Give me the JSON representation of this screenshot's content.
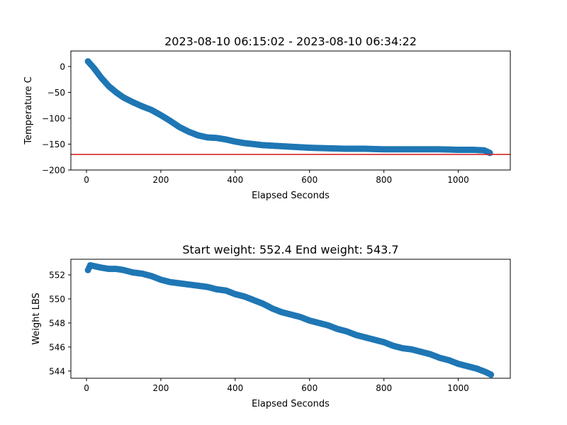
{
  "chart_data": [
    {
      "type": "scatter",
      "title": "2023-08-10 06:15:02 - 2023-08-10 06:34:22",
      "xlabel": "Elapsed Seconds",
      "ylabel": "Temperature C",
      "xlim": [
        -42,
        1140
      ],
      "ylim": [
        -200,
        30
      ],
      "xticks": [
        0,
        200,
        400,
        600,
        800,
        1000
      ],
      "yticks": [
        0,
        -50,
        -100,
        -150,
        -200
      ],
      "xtick_labels": [
        "0",
        "200",
        "400",
        "600",
        "800",
        "1000"
      ],
      "ytick_labels": [
        "0",
        "−50",
        "−100",
        "−150",
        "−200"
      ],
      "grid": false,
      "marker_color": "#1f77b4",
      "reference_line": {
        "y": -170,
        "color": "#d62728"
      },
      "series": [
        {
          "x": [
            4,
            20,
            40,
            60,
            80,
            100,
            125,
            150,
            175,
            200,
            225,
            250,
            275,
            300,
            325,
            350,
            375,
            400,
            425,
            450,
            475,
            500,
            525,
            550,
            575,
            600,
            650,
            700,
            750,
            800,
            850,
            900,
            950,
            1000,
            1040,
            1070,
            1085
          ],
          "y": [
            10,
            -3,
            -22,
            -38,
            -50,
            -60,
            -69,
            -77,
            -84,
            -94,
            -105,
            -117,
            -126,
            -133,
            -137,
            -138,
            -141,
            -145,
            -148,
            -150,
            -152,
            -153,
            -154,
            -155,
            -156,
            -157,
            -158,
            -159,
            -159,
            -160,
            -160,
            -160,
            -160,
            -161,
            -161,
            -162,
            -167
          ]
        }
      ]
    },
    {
      "type": "scatter",
      "title": "Start weight: 552.4 End weight: 543.7",
      "xlabel": "Elapsed Seconds",
      "ylabel": "Weight LBS",
      "xlim": [
        -42,
        1140
      ],
      "ylim": [
        543.4,
        553.3
      ],
      "xticks": [
        0,
        200,
        400,
        600,
        800,
        1000
      ],
      "yticks": [
        544,
        546,
        548,
        550,
        552
      ],
      "xtick_labels": [
        "0",
        "200",
        "400",
        "600",
        "800",
        "1000"
      ],
      "ytick_labels": [
        "544",
        "546",
        "548",
        "550",
        "552"
      ],
      "grid": false,
      "marker_color": "#1f77b4",
      "series": [
        {
          "x": [
            4,
            10,
            25,
            40,
            60,
            80,
            100,
            125,
            150,
            175,
            200,
            225,
            250,
            275,
            300,
            325,
            350,
            375,
            400,
            425,
            450,
            475,
            500,
            525,
            550,
            575,
            600,
            625,
            650,
            675,
            700,
            725,
            750,
            775,
            800,
            825,
            850,
            875,
            900,
            925,
            950,
            975,
            1000,
            1025,
            1050,
            1075,
            1088
          ],
          "y": [
            552.4,
            552.8,
            552.7,
            552.6,
            552.5,
            552.5,
            552.4,
            552.2,
            552.1,
            551.9,
            551.6,
            551.4,
            551.3,
            551.2,
            551.1,
            551.0,
            550.8,
            550.7,
            550.4,
            550.2,
            549.9,
            549.6,
            549.2,
            548.9,
            548.7,
            548.5,
            548.2,
            548.0,
            547.8,
            547.5,
            547.3,
            547.0,
            546.8,
            546.6,
            546.4,
            546.1,
            545.9,
            545.8,
            545.6,
            545.4,
            545.1,
            544.9,
            544.6,
            544.4,
            544.2,
            543.9,
            543.7
          ]
        }
      ]
    }
  ]
}
